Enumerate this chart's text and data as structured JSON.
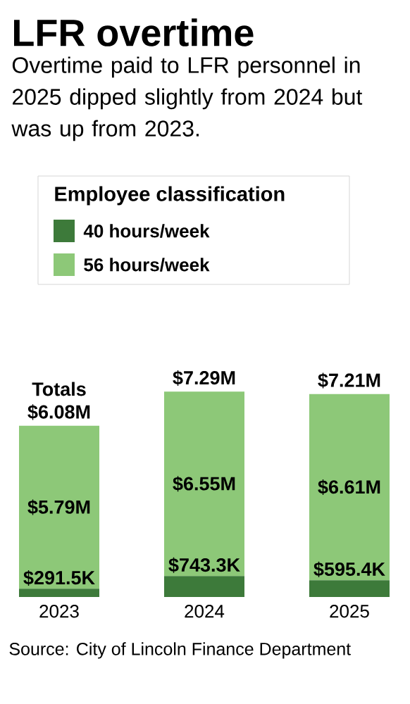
{
  "chart_data": {
    "type": "bar",
    "title": "LFR overtime",
    "subtitle": "Overtime paid to LFR personnel in 2025 dipped slightly from 2024 but was up from 2023.",
    "legend_title": "Employee classification",
    "categories": [
      "2023",
      "2024",
      "2025"
    ],
    "stacked": true,
    "series": [
      {
        "name": "40 hours/week",
        "color": "#3d7a3a",
        "values": [
          291500,
          743300,
          595400
        ],
        "value_labels": [
          "$291.5K",
          "$743.3K",
          "$595.4K"
        ]
      },
      {
        "name": "56 hours/week",
        "color": "#8dc878",
        "values": [
          5790000,
          6550000,
          6610000
        ],
        "value_labels": [
          "$5.79M",
          "$6.55M",
          "$6.61M"
        ]
      }
    ],
    "totals": [
      "$6.08M",
      "$7.29M",
      "$7.21M"
    ],
    "legend": "top",
    "annotations": [
      "Totals",
      "Source: City of Lincoln Finance Department"
    ]
  }
}
